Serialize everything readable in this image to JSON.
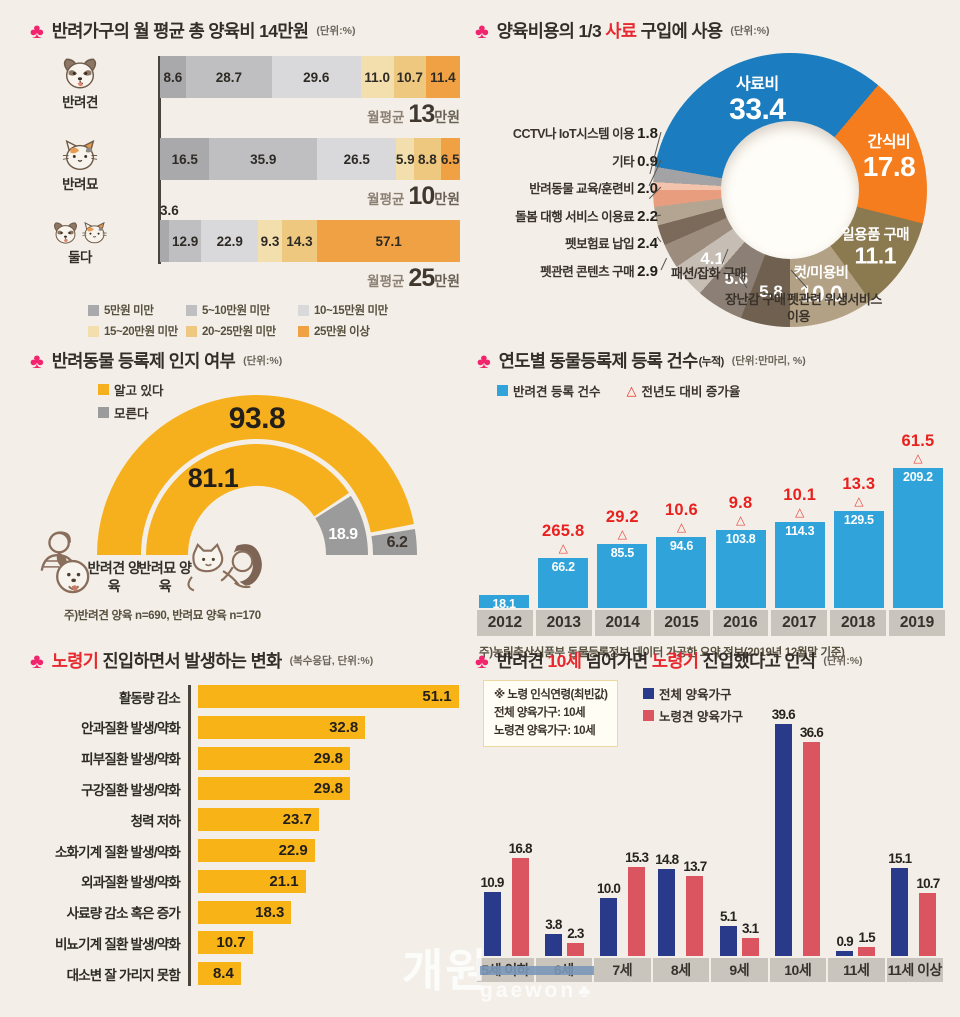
{
  "icons": {
    "clover": "♣"
  },
  "colors": {
    "background": "#f3efe8",
    "accent_pink": "#f2246d",
    "accent_red": "#e8282e",
    "band_gray": "#c9c5bd"
  },
  "watermark": {
    "kr": "개원",
    "en": "gaewon",
    "clover": "♣"
  },
  "chart_data": [
    {
      "id": "monthly-pet-cost",
      "type": "bar",
      "subtype": "stacked-horizontal",
      "title_segments": [
        {
          "t": "반려가구의 월 평균 총 양육비 14만원"
        }
      ],
      "unit": "(단위:%)",
      "legend": [
        {
          "label": "5만원 미만",
          "color": "#a9a9ab"
        },
        {
          "label": "5~10만원 미만",
          "color": "#bfbfc1"
        },
        {
          "label": "10~15만원 미만",
          "color": "#d9d8da"
        },
        {
          "label": "15~20만원 미만",
          "color": "#f3dfad"
        },
        {
          "label": "20~25만원 미만",
          "color": "#eec87e"
        },
        {
          "label": "25만원 이상",
          "color": "#f0a143"
        }
      ],
      "rows": [
        {
          "category": "반려견",
          "icon": "dog-icon",
          "values": [
            "8.6",
            "28.7",
            "29.6",
            "11.0",
            "10.7",
            "11.4"
          ],
          "avg_prefix": "월평균",
          "avg_number": "13",
          "avg_suffix": "만원"
        },
        {
          "category": "반려묘",
          "icon": "cat-icon",
          "values": [
            "16.5",
            "35.9",
            "26.5",
            "5.9",
            "8.8",
            "6.5"
          ],
          "avg_prefix": "월평균",
          "avg_number": "10",
          "avg_suffix": "만원"
        },
        {
          "category": "둘다",
          "icon": "dog-cat-icon",
          "values": [
            "3.6",
            "12.9",
            "22.9",
            "9.3",
            "14.3",
            "57.1"
          ],
          "avg_prefix": "월평균",
          "avg_number": "25",
          "avg_suffix": "만원"
        }
      ]
    },
    {
      "id": "cost-breakdown-donut",
      "type": "pie",
      "subtype": "donut",
      "title_segments": [
        {
          "t": "양육비용의 1/3 "
        },
        {
          "t": "사료",
          "red": true
        },
        {
          "t": " 구입에 사용"
        }
      ],
      "unit": "(단위:%)",
      "start_angle_deg": -80.2,
      "slices": [
        {
          "label": "사료비",
          "value": "33.4",
          "color": "#1b7dbf"
        },
        {
          "label": "간식비",
          "value": "17.8",
          "color": "#f57d1d"
        },
        {
          "label": "일용품 구매",
          "value": "11.1",
          "color": "#8b7950"
        },
        {
          "label": "컷/미용비",
          "value": "10.0",
          "color": "#b2a184"
        },
        {
          "label": "펫관련 위생서비스 이용",
          "value": "5.8",
          "color": "#6f6050"
        },
        {
          "label": "장난감 구매",
          "value": "5.6",
          "color": "#8c7f75"
        },
        {
          "label": "패션/잡화 구매",
          "value": "4.1",
          "color": "#c6beb4"
        },
        {
          "label": "펫관련 콘텐츠 구매",
          "value": "2.9",
          "color": "#9c8c7e"
        },
        {
          "label": "펫보험료 납입",
          "value": "2.4",
          "color": "#7b6a5a"
        },
        {
          "label": "돌봄 대행 서비스 이용료",
          "value": "2.2",
          "color": "#b4a492"
        },
        {
          "label": "반려동물 교육/훈련비",
          "value": "2.0",
          "color": "#e89d7e"
        },
        {
          "label": "기타",
          "value": "0.9",
          "color": "#f3c4ab"
        },
        {
          "label": "CCTV나 IoT시스템 이용",
          "value": "1.8",
          "color": "#a3a3a5"
        }
      ]
    },
    {
      "id": "registration-awareness-gauge",
      "type": "gauge",
      "title_segments": [
        {
          "t": "반려동물 등록제 인지 여부"
        }
      ],
      "unit": "(단위:%)",
      "legend": [
        {
          "label": "알고 있다",
          "color": "#f6b01e"
        },
        {
          "label": "모른다",
          "color": "#9b9b9b"
        }
      ],
      "arcs": [
        {
          "category": "반려견 양육",
          "aware": "93.8",
          "unaware": "6.2"
        },
        {
          "category": "반려묘 양육",
          "aware": "81.1",
          "unaware": "18.9"
        }
      ],
      "note": "주)반려견 양육 n=690, 반려묘 양육 n=170"
    },
    {
      "id": "yearly-registrations",
      "type": "bar",
      "subtype": "vertical",
      "title_segments": [
        {
          "t": "연도별 동물등록제 등록 건수"
        }
      ],
      "title_note": "(누적)",
      "unit": "(단위:만마리, %)",
      "legend": [
        {
          "label": "반려견 등록 건수",
          "marker": "square",
          "color": "#2fa3da"
        },
        {
          "label": "전년도 대비 증가율",
          "marker": "triangle",
          "color": "#e8332a"
        }
      ],
      "categories": [
        "2012",
        "2013",
        "2014",
        "2015",
        "2016",
        "2017",
        "2018",
        "2019"
      ],
      "values": [
        "18.1",
        "66.2",
        "85.5",
        "94.6",
        "103.8",
        "114.3",
        "129.5",
        "209.2"
      ],
      "growth_rates": [
        null,
        "265.8",
        "29.2",
        "10.6",
        "9.8",
        "10.1",
        "13.3",
        "61.5"
      ],
      "bar_color": "#2fa3da",
      "ylim": [
        0,
        220
      ],
      "note": "주)농림축산식품부 동물등록정보 데이터 가공한 요약 정보(2019년 12월말 기준)"
    },
    {
      "id": "senior-changes",
      "type": "bar",
      "subtype": "horizontal",
      "title_segments": [
        {
          "t": "노령기",
          "red": true
        },
        {
          "t": " 진입하면서 발생하는 변화"
        }
      ],
      "unit": "(복수응답, 단위:%)",
      "bar_color": "#f8b317",
      "categories": [
        "활동량 감소",
        "안과질환 발생/약화",
        "피부질환 발생/약화",
        "구강질환 발생/약화",
        "청력 저하",
        "소화기계 질환 발생/약화",
        "외과질환 발생/약화",
        "사료량 감소 혹은 증가",
        "비뇨기계 질환 발생/약화",
        "대소변 잘 가리지 못함"
      ],
      "values": [
        "51.1",
        "32.8",
        "29.8",
        "29.8",
        "23.7",
        "22.9",
        "21.1",
        "18.3",
        "10.7",
        "8.4"
      ],
      "xlim": [
        0,
        55
      ]
    },
    {
      "id": "senior-age-perception",
      "type": "bar",
      "subtype": "grouped-vertical",
      "title_segments": [
        {
          "t": "반려견 "
        },
        {
          "t": "10세",
          "red": true
        },
        {
          "t": " 넘어가면 "
        },
        {
          "t": "노령기",
          "red": true
        },
        {
          "t": " 진입했다고 인식"
        }
      ],
      "unit": "(단위:%)",
      "note_box": {
        "lines": [
          "※ 노령 인식연령(최빈값)",
          "전체 양육가구: 10세",
          "노령견 양육가구: 10세"
        ]
      },
      "categories": [
        "5세 이하",
        "6세",
        "7세",
        "8세",
        "9세",
        "10세",
        "11세",
        "11세 이상"
      ],
      "series": [
        {
          "name": "전체 양육가구",
          "color": "#2a3a8b",
          "values": [
            "10.9",
            "3.8",
            "10.0",
            "14.8",
            "5.1",
            "39.6",
            "0.9",
            "15.1"
          ]
        },
        {
          "name": "노령견 양육가구",
          "color": "#da5560",
          "values": [
            "16.8",
            "2.3",
            "15.3",
            "13.7",
            "3.1",
            "36.6",
            "1.5",
            "10.7"
          ]
        }
      ],
      "ylim": [
        0,
        42
      ]
    }
  ]
}
